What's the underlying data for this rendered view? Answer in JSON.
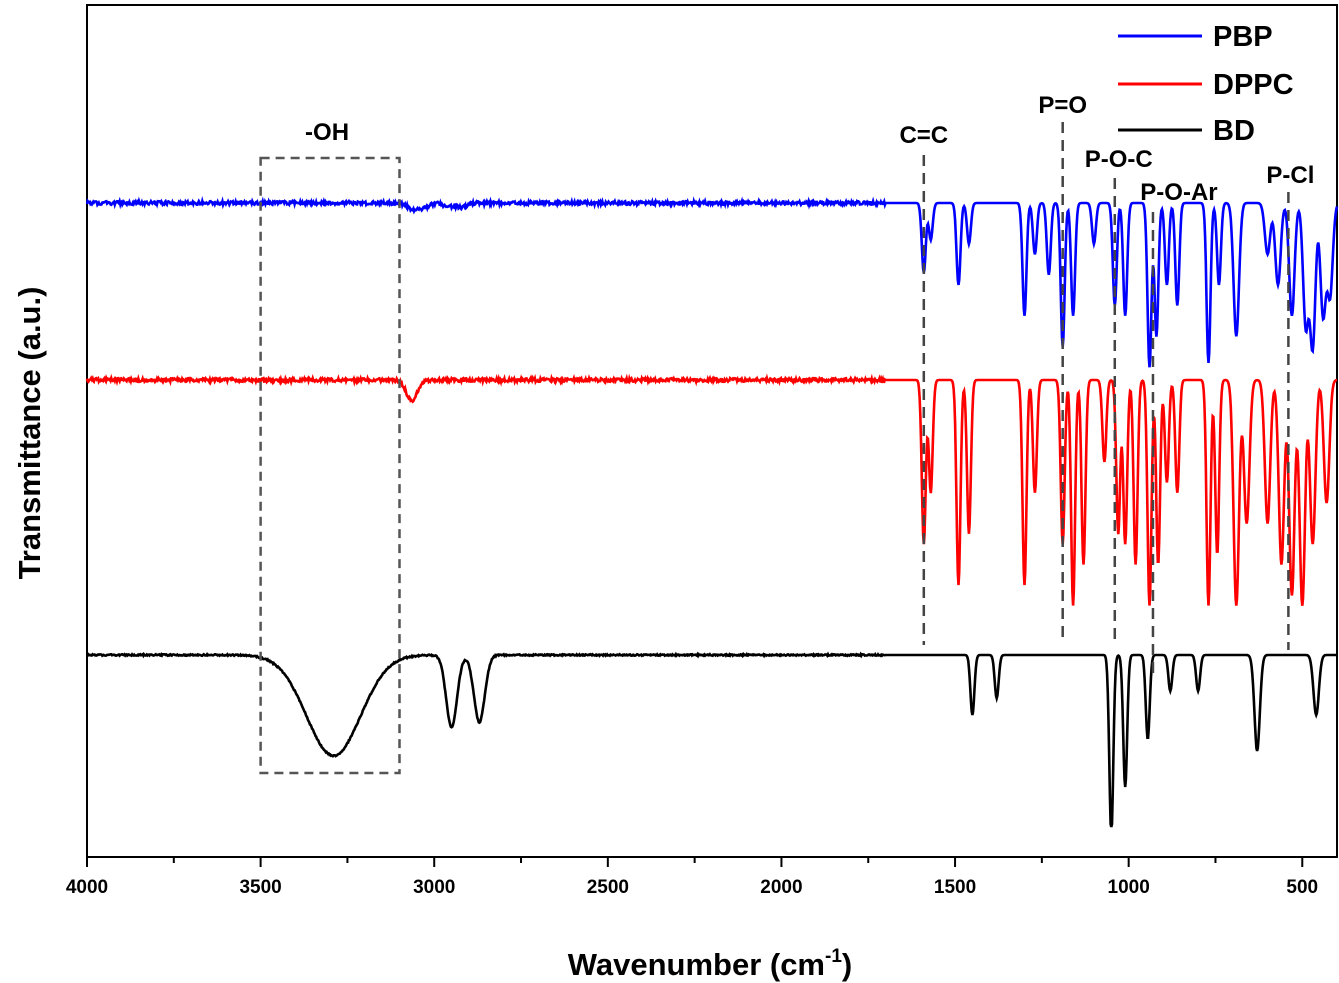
{
  "chart_data": {
    "type": "line",
    "xlabel": "Wavenumber (cm",
    "xlabel_sup": "-1",
    "xlabel_end": ")",
    "ylabel": "Transmittance (a.u.)",
    "x_range": [
      4000,
      400
    ],
    "x_reversed": true,
    "x_ticks": [
      4000,
      3500,
      3000,
      2500,
      2000,
      1500,
      1000,
      500
    ],
    "x_tick_labels": [
      "4000",
      "3500",
      "3000",
      "2500",
      "2000",
      "1500",
      "1000",
      "500"
    ],
    "y_ticks_shown": false,
    "grid": false,
    "legend_position": "top-right",
    "series": [
      {
        "name": "PBP",
        "color": "#0000ff",
        "offset_level": 2,
        "peaks": [
          [
            3060,
            0.03
          ],
          [
            3030,
            0.02
          ],
          [
            2960,
            0.015
          ],
          [
            2920,
            0.02
          ],
          [
            1590,
            0.34
          ],
          [
            1570,
            0.18
          ],
          [
            1490,
            0.4
          ],
          [
            1460,
            0.2
          ],
          [
            1300,
            0.55
          ],
          [
            1270,
            0.25
          ],
          [
            1230,
            0.35
          ],
          [
            1190,
            0.7
          ],
          [
            1160,
            0.55
          ],
          [
            1100,
            0.2
          ],
          [
            1040,
            0.5
          ],
          [
            1010,
            0.55
          ],
          [
            940,
            0.8
          ],
          [
            920,
            0.65
          ],
          [
            890,
            0.4
          ],
          [
            860,
            0.5
          ],
          [
            770,
            0.78
          ],
          [
            740,
            0.4
          ],
          [
            690,
            0.65
          ],
          [
            600,
            0.25
          ],
          [
            570,
            0.4
          ],
          [
            530,
            0.55
          ],
          [
            490,
            0.6
          ],
          [
            470,
            0.7
          ],
          [
            440,
            0.55
          ],
          [
            420,
            0.45
          ]
        ]
      },
      {
        "name": "DPPC",
        "color": "#ff0000",
        "offset_level": 1,
        "peaks": [
          [
            3065,
            0.1
          ],
          [
            1590,
            0.8
          ],
          [
            1570,
            0.55
          ],
          [
            1490,
            1.0
          ],
          [
            1460,
            0.75
          ],
          [
            1300,
            1.0
          ],
          [
            1270,
            0.55
          ],
          [
            1190,
            0.8
          ],
          [
            1160,
            1.1
          ],
          [
            1130,
            0.9
          ],
          [
            1070,
            0.4
          ],
          [
            1030,
            0.75
          ],
          [
            1010,
            0.8
          ],
          [
            980,
            0.9
          ],
          [
            940,
            1.1
          ],
          [
            915,
            0.9
          ],
          [
            890,
            0.5
          ],
          [
            860,
            0.55
          ],
          [
            770,
            1.1
          ],
          [
            745,
            0.85
          ],
          [
            690,
            1.1
          ],
          [
            660,
            0.7
          ],
          [
            600,
            0.7
          ],
          [
            560,
            0.9
          ],
          [
            530,
            1.05
          ],
          [
            500,
            1.1
          ],
          [
            470,
            0.8
          ],
          [
            430,
            0.6
          ]
        ]
      },
      {
        "name": "BD",
        "color": "#000000",
        "offset_level": 0,
        "peaks": [
          [
            3290,
            0.42
          ],
          [
            2950,
            0.3
          ],
          [
            2870,
            0.28
          ],
          [
            1450,
            0.25
          ],
          [
            1380,
            0.18
          ],
          [
            1050,
            0.75
          ],
          [
            1010,
            0.55
          ],
          [
            945,
            0.35
          ],
          [
            880,
            0.15
          ],
          [
            800,
            0.15
          ],
          [
            630,
            0.4
          ],
          [
            460,
            0.25
          ]
        ]
      }
    ],
    "annotations": [
      {
        "label": "-OH",
        "kind": "box",
        "x_from": 3500,
        "x_to": 3100
      },
      {
        "label": "C=C",
        "kind": "line",
        "x": 1590
      },
      {
        "label": "P=O",
        "kind": "line",
        "x": 1190
      },
      {
        "label": "P-O-C",
        "kind": "line",
        "x": 1040
      },
      {
        "label": "P-O-Ar",
        "kind": "line",
        "x": 930
      },
      {
        "label": "P-Cl",
        "kind": "line",
        "x": 540
      }
    ]
  }
}
